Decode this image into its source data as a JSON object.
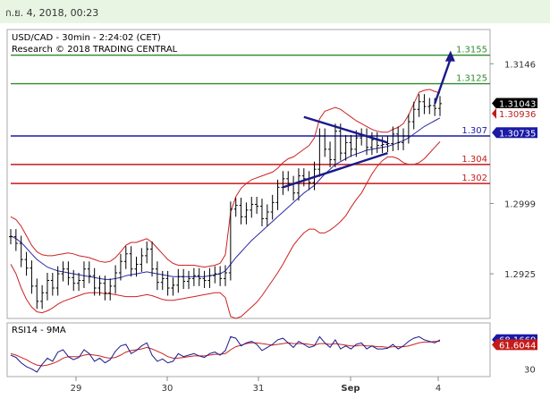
{
  "header": {
    "date_time": "ก.ย. 4, 2018, 00:23"
  },
  "chart_data": {
    "type": "line",
    "title": "USD/CAD - 30min - 2:24:02 (CET)",
    "subtitle": "Research © 2018 TRADING CENTRAL",
    "x_ticks": [
      "29",
      "30",
      "31",
      "Sep",
      "4"
    ],
    "y_ticks": [
      {
        "value": 1.3146,
        "label": "1.3146"
      },
      {
        "value": 1.2999,
        "label": "1.2999"
      },
      {
        "value": 1.2925,
        "label": "1.2925"
      }
    ],
    "ylim": [
      1.2878,
      1.3182
    ],
    "levels": [
      {
        "value": 1.3155,
        "label": "1.3155",
        "color": "#2e8b2e",
        "kind": "resistance"
      },
      {
        "value": 1.3125,
        "label": "1.3125",
        "color": "#2e8b2e",
        "kind": "resistance"
      },
      {
        "value": 1.307,
        "label": "1.307",
        "color": "#1a1aa6",
        "kind": "pivot"
      },
      {
        "value": 1.304,
        "label": "1.304",
        "color": "#c41a1a",
        "kind": "support"
      },
      {
        "value": 1.302,
        "label": "1.302",
        "color": "#c41a1a",
        "kind": "support"
      }
    ],
    "price_tags": [
      {
        "value": 1.31043,
        "label": "1.31043",
        "bg": "#000000",
        "fg": "#ffffff"
      },
      {
        "value": 1.30936,
        "label": "1.30936",
        "bg": "#ffffff",
        "fg": "#c41a1a"
      },
      {
        "value": 1.30735,
        "label": "1.30735",
        "bg": "#1a1aa6",
        "fg": "#ffffff"
      }
    ],
    "price_series": [
      1.2964,
      1.2957,
      1.294,
      1.2931,
      1.2912,
      1.2896,
      1.2905,
      1.2918,
      1.291,
      1.2925,
      1.293,
      1.2921,
      1.2915,
      1.2918,
      1.293,
      1.2923,
      1.291,
      1.2915,
      1.2905,
      1.2912,
      1.2926,
      1.2938,
      1.2946,
      1.293,
      1.2935,
      1.2944,
      1.2951,
      1.293,
      1.2916,
      1.292,
      1.291,
      1.2913,
      1.2922,
      1.2917,
      1.292,
      1.2923,
      1.292,
      1.2918,
      1.2923,
      1.2925,
      1.292,
      1.2926,
      1.2993,
      1.2997,
      1.2985,
      1.2992,
      1.2998,
      1.2996,
      1.2983,
      1.299,
      1.3,
      1.3016,
      1.3025,
      1.302,
      1.301,
      1.3028,
      1.3025,
      1.3021,
      1.3035,
      1.307,
      1.3056,
      1.3045,
      1.3075,
      1.3052,
      1.3063,
      1.3056,
      1.3068,
      1.307,
      1.3058,
      1.3066,
      1.306,
      1.3061,
      1.3062,
      1.3072,
      1.3063,
      1.307,
      1.3085,
      1.3098,
      1.3106,
      1.3101,
      1.3102,
      1.3099,
      1.3104
    ],
    "bollinger_upper": [
      1.2985,
      1.2982,
      1.2975,
      1.2965,
      1.2955,
      1.2948,
      1.2945,
      1.2944,
      1.2944,
      1.2945,
      1.2946,
      1.2947,
      1.2946,
      1.2944,
      1.2943,
      1.2942,
      1.294,
      1.2938,
      1.2937,
      1.2938,
      1.2942,
      1.2948,
      1.2955,
      1.2958,
      1.2958,
      1.296,
      1.2962,
      1.2958,
      1.2952,
      1.2946,
      1.294,
      1.2936,
      1.2934,
      1.2934,
      1.2934,
      1.2934,
      1.2933,
      1.2932,
      1.2933,
      1.2934,
      1.2936,
      1.2945,
      1.299,
      1.3006,
      1.3015,
      1.302,
      1.3024,
      1.3026,
      1.3028,
      1.303,
      1.3032,
      1.3036,
      1.3042,
      1.3046,
      1.3048,
      1.3052,
      1.3056,
      1.306,
      1.3068,
      1.3088,
      1.3096,
      1.3098,
      1.31,
      1.3098,
      1.3094,
      1.309,
      1.3086,
      1.3083,
      1.308,
      1.3077,
      1.3075,
      1.3074,
      1.3074,
      1.3077,
      1.3079,
      1.3083,
      1.3092,
      1.3104,
      1.3116,
      1.3118,
      1.3119,
      1.3117,
      1.3115
    ],
    "bollinger_lower": [
      1.2935,
      1.2925,
      1.291,
      1.2898,
      1.289,
      1.2885,
      1.2884,
      1.2886,
      1.2889,
      1.2893,
      1.2896,
      1.2898,
      1.29,
      1.2902,
      1.2904,
      1.2905,
      1.2905,
      1.2905,
      1.2904,
      1.2904,
      1.2903,
      1.2902,
      1.2901,
      1.2901,
      1.2901,
      1.2902,
      1.2903,
      1.2902,
      1.29,
      1.2898,
      1.2897,
      1.2897,
      1.2898,
      1.2899,
      1.29,
      1.2901,
      1.2902,
      1.2903,
      1.2904,
      1.2905,
      1.2905,
      1.29,
      1.288,
      1.2878,
      1.288,
      1.2885,
      1.289,
      1.2895,
      1.2902,
      1.291,
      1.2918,
      1.2926,
      1.2935,
      1.2945,
      1.2955,
      1.2962,
      1.2968,
      1.2972,
      1.2972,
      1.2968,
      1.2968,
      1.2971,
      1.2975,
      1.298,
      1.2986,
      1.2995,
      1.3003,
      1.301,
      1.302,
      1.303,
      1.3038,
      1.3044,
      1.3048,
      1.3048,
      1.3046,
      1.3042,
      1.304,
      1.304,
      1.3042,
      1.3046,
      1.3052,
      1.3058,
      1.3064
    ],
    "moving_average": [
      1.2965,
      1.2962,
      1.2958,
      1.2952,
      1.2946,
      1.294,
      1.2936,
      1.2932,
      1.293,
      1.2928,
      1.2927,
      1.2926,
      1.2925,
      1.2924,
      1.2923,
      1.2922,
      1.2921,
      1.292,
      1.2919,
      1.2919,
      1.292,
      1.2921,
      1.2923,
      1.2924,
      1.2925,
      1.2926,
      1.2927,
      1.2926,
      1.2925,
      1.2924,
      1.2923,
      1.2922,
      1.2922,
      1.2922,
      1.2922,
      1.2922,
      1.2922,
      1.2922,
      1.2923,
      1.2924,
      1.2925,
      1.2928,
      1.2935,
      1.2942,
      1.2948,
      1.2954,
      1.296,
      1.2965,
      1.297,
      1.2975,
      1.298,
      1.2985,
      1.299,
      1.2995,
      1.3,
      1.3005,
      1.301,
      1.3014,
      1.3018,
      1.3024,
      1.303,
      1.3035,
      1.304,
      1.3043,
      1.3046,
      1.3049,
      1.3051,
      1.3053,
      1.3055,
      1.3056,
      1.3057,
      1.3058,
      1.3059,
      1.3061,
      1.3063,
      1.3065,
      1.3068,
      1.3072,
      1.3076,
      1.308,
      1.3083,
      1.3086,
      1.3089
    ],
    "rsi": {
      "label": "RSI14 - 9MA",
      "ylim": [
        20,
        90
      ],
      "ticks": [
        {
          "value": 68.1669,
          "label": "68.1669",
          "bg": "#1a1aa6",
          "fg": "#ffffff"
        },
        {
          "value": 61.6044,
          "label": "61.6044",
          "bg": "#c41a1a",
          "fg": "#ffffff"
        },
        {
          "value": 30,
          "label": "30",
          "bg": "",
          "fg": "#333333"
        }
      ],
      "rsi_values": [
        48,
        45,
        38,
        33,
        30,
        26,
        36,
        44,
        40,
        52,
        55,
        46,
        42,
        45,
        55,
        50,
        40,
        44,
        38,
        42,
        53,
        60,
        62,
        50,
        54,
        60,
        64,
        48,
        40,
        43,
        38,
        40,
        50,
        46,
        48,
        50,
        47,
        45,
        50,
        52,
        48,
        54,
        72,
        70,
        60,
        64,
        66,
        62,
        54,
        58,
        62,
        68,
        70,
        64,
        58,
        66,
        62,
        58,
        60,
        72,
        64,
        58,
        68,
        56,
        60,
        56,
        62,
        64,
        56,
        60,
        56,
        56,
        57,
        62,
        56,
        60,
        66,
        70,
        72,
        68,
        66,
        64,
        68
      ],
      "ma_values": [
        50,
        48,
        45,
        42,
        38,
        35,
        34,
        35,
        37,
        40,
        44,
        46,
        46,
        46,
        48,
        49,
        48,
        47,
        45,
        44,
        45,
        48,
        52,
        54,
        55,
        56,
        58,
        56,
        53,
        50,
        46,
        44,
        44,
        45,
        46,
        47,
        47,
        47,
        48,
        49,
        49,
        50,
        55,
        59,
        61,
        63,
        64,
        64,
        63,
        62,
        61,
        62,
        63,
        64,
        63,
        63,
        63,
        62,
        61,
        63,
        63,
        62,
        63,
        62,
        61,
        60,
        60,
        61,
        60,
        60,
        59,
        59,
        58,
        59,
        59,
        59,
        60,
        62,
        64,
        65,
        65,
        66,
        66
      ]
    },
    "triangle": {
      "upper": [
        [
          56,
          1.309
        ],
        [
          72,
          1.3063
        ]
      ],
      "lower": [
        [
          52,
          1.3016
        ],
        [
          72,
          1.3052
        ]
      ],
      "projection": [
        [
          81,
          1.3104
        ],
        [
          83,
          1.3157
        ]
      ]
    }
  }
}
